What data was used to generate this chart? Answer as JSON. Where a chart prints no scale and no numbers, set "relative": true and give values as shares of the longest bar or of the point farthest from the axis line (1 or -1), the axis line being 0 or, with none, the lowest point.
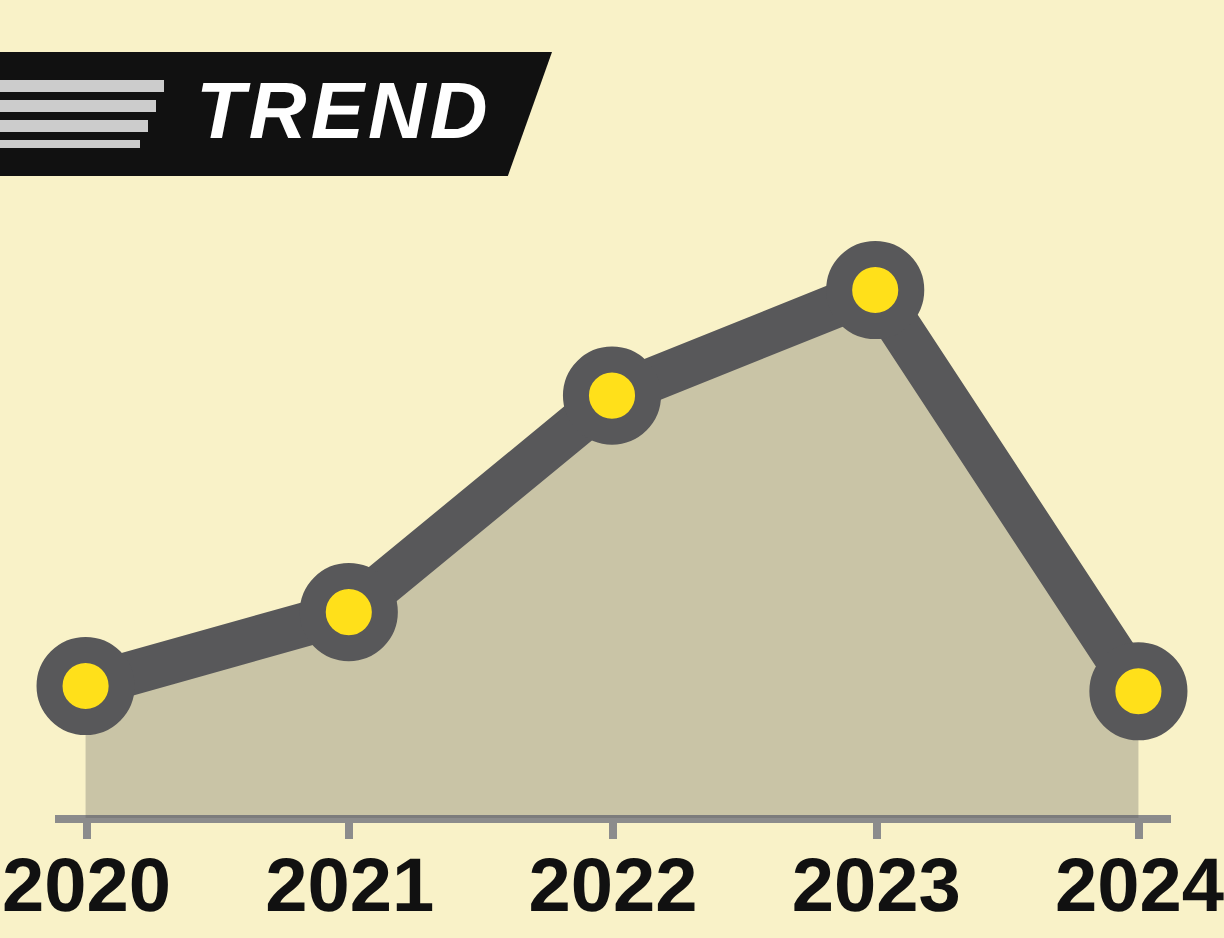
{
  "chart_data": {
    "type": "area",
    "title": "TREND",
    "relative": true,
    "categories": [
      "2020",
      "2021",
      "2022",
      "2023",
      "2024"
    ],
    "series": [
      {
        "color": "#58585a",
        "values": [
          0.25,
          0.39,
          0.8,
          1,
          0.24
        ]
      }
    ],
    "marker": "circle"
  }
}
